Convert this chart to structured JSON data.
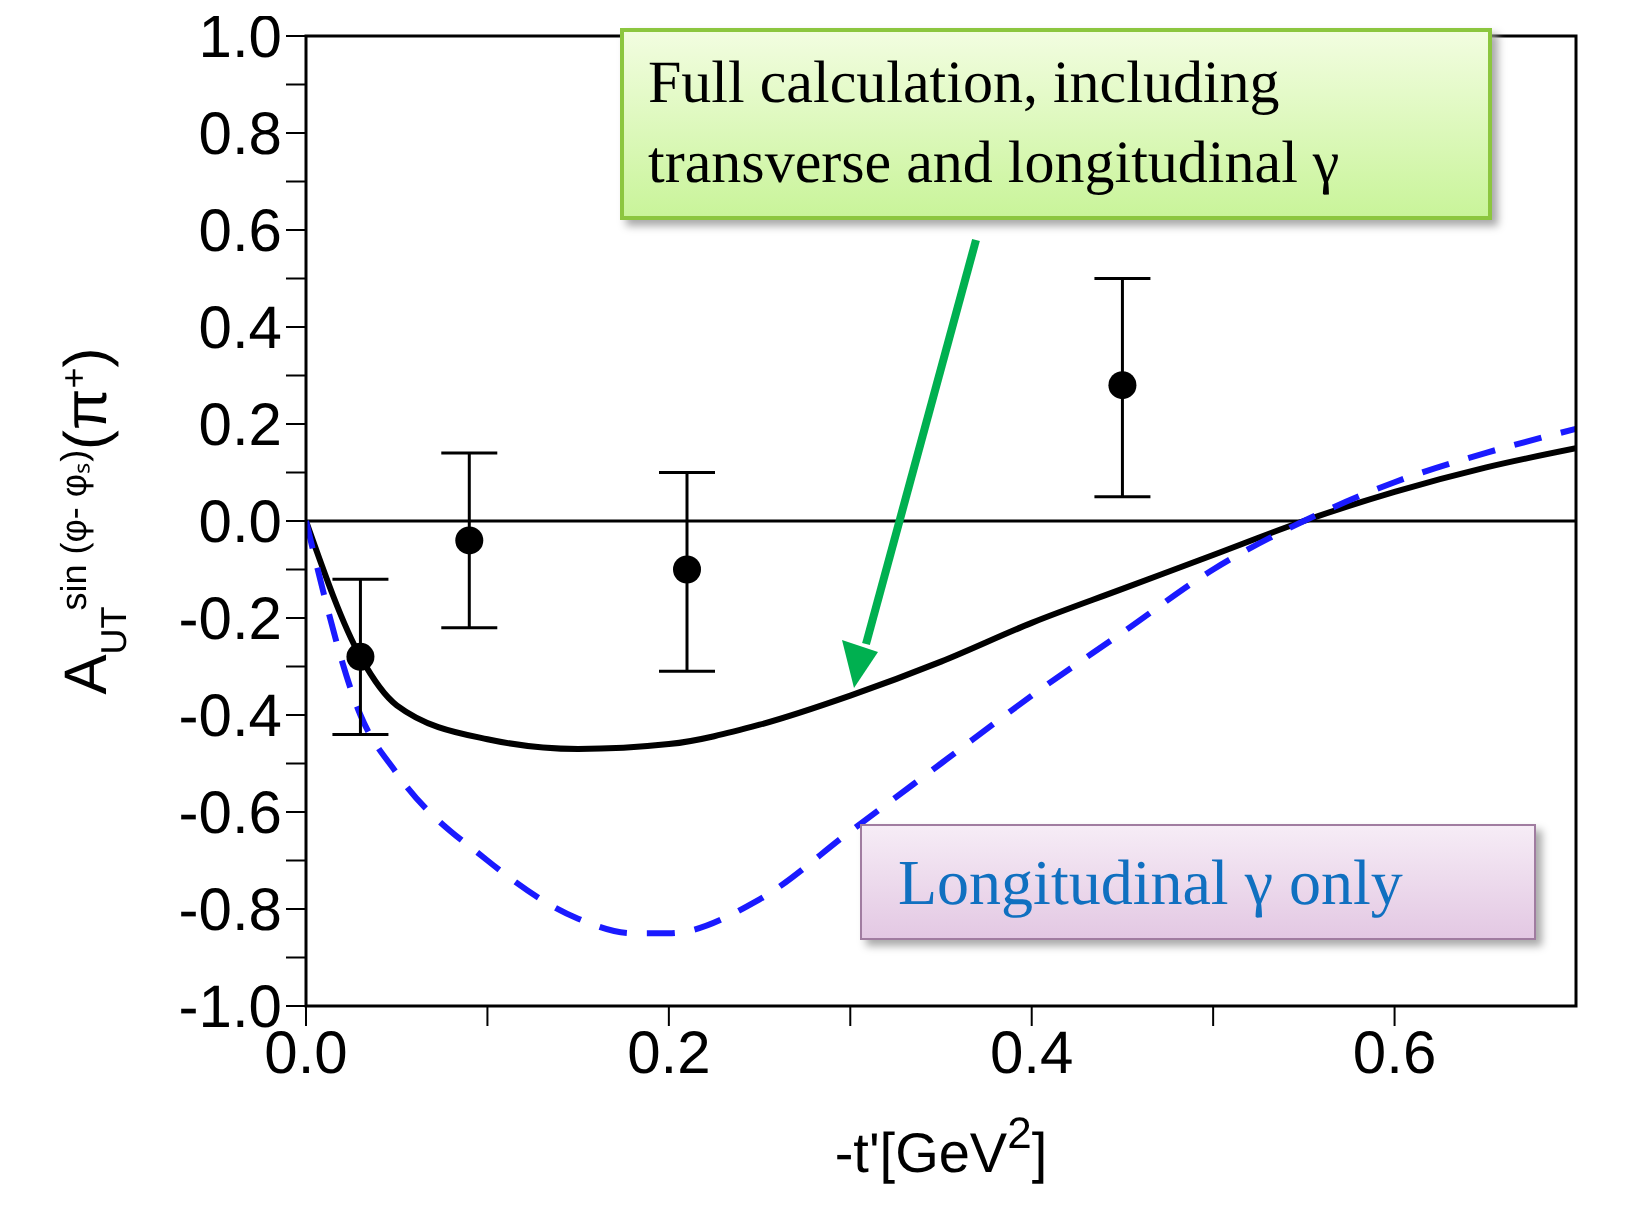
{
  "chart_data": {
    "type": "line",
    "xlabel": "-t'[GeV$^{2}$]",
    "ylabel": "A$_{UT}$$^{sin (φ- φₛ)}$(π$^{+}$)",
    "xlim": [
      0,
      0.7
    ],
    "ylim": [
      -1,
      1
    ],
    "xticks": [
      {
        "value": 0,
        "label": "0.0"
      },
      {
        "value": 0.1,
        "label": null
      },
      {
        "value": 0.2,
        "label": "0.2"
      },
      {
        "value": 0.3,
        "label": null
      },
      {
        "value": 0.4,
        "label": "0.4"
      },
      {
        "value": 0.5,
        "label": null
      },
      {
        "value": 0.6,
        "label": "0.6"
      }
    ],
    "yticks": [
      {
        "value": -1,
        "label": "-1.0"
      },
      {
        "value": -0.9,
        "label": null
      },
      {
        "value": -0.8,
        "label": "-0.8"
      },
      {
        "value": -0.7,
        "label": null
      },
      {
        "value": -0.6,
        "label": "-0.6"
      },
      {
        "value": -0.5,
        "label": null
      },
      {
        "value": -0.4,
        "label": "-0.4"
      },
      {
        "value": -0.3,
        "label": null
      },
      {
        "value": -0.2,
        "label": "-0.2"
      },
      {
        "value": -0.1,
        "label": null
      },
      {
        "value": 0,
        "label": "0.0"
      },
      {
        "value": 0.1,
        "label": null
      },
      {
        "value": 0.2,
        "label": "0.2"
      },
      {
        "value": 0.3,
        "label": null
      },
      {
        "value": 0.4,
        "label": "0.4"
      },
      {
        "value": 0.5,
        "label": null
      },
      {
        "value": 0.6,
        "label": "0.6"
      },
      {
        "value": 0.7,
        "label": null
      },
      {
        "value": 0.8,
        "label": "0.8"
      },
      {
        "value": 0.9,
        "label": null
      },
      {
        "value": 1,
        "label": "1.0"
      }
    ],
    "grid": false,
    "legend": false,
    "ref_lines": [
      {
        "axis": "y",
        "value": 0,
        "color": "#000000"
      }
    ],
    "series": [
      {
        "color": "#000000",
        "line_style": "solid",
        "marker": "none",
        "x": [
          0,
          0.03,
          0.05,
          0.1,
          0.15,
          0.2,
          0.25,
          0.3,
          0.35,
          0.4,
          0.45,
          0.5,
          0.55,
          0.6,
          0.65,
          0.7
        ],
        "values": [
          0,
          -0.28,
          -0.38,
          -0.45,
          -0.47,
          -0.46,
          -0.42,
          -0.36,
          -0.29,
          -0.21,
          -0.14,
          -0.07,
          0,
          0.06,
          0.11,
          0.15
        ]
      },
      {
        "color": "#1a1aff",
        "line_style": "dashed",
        "marker": "none",
        "x": [
          0,
          0.03,
          0.05,
          0.1,
          0.15,
          0.18,
          0.2,
          0.25,
          0.3,
          0.35,
          0.4,
          0.45,
          0.5,
          0.55,
          0.6,
          0.65,
          0.7
        ],
        "values": [
          0,
          -0.4,
          -0.52,
          -0.7,
          -0.82,
          -0.85,
          -0.85,
          -0.78,
          -0.64,
          -0.5,
          -0.36,
          -0.23,
          -0.1,
          0,
          0.08,
          0.14,
          0.19
        ]
      },
      {
        "type": "scatter",
        "color": "#000000",
        "marker": "circle",
        "x": [
          0.03,
          0.09,
          0.21,
          0.45
        ],
        "values": [
          -0.28,
          -0.04,
          -0.1,
          0.28
        ],
        "errors": [
          [
            -0.44,
            -0.12
          ],
          [
            -0.22,
            0.14
          ],
          [
            -0.31,
            0.1
          ],
          [
            0.05,
            0.5
          ]
        ]
      }
    ],
    "annotations": [
      "Full calculation, including transverse and longitudinal γ",
      "Longitudinal γ only"
    ]
  }
}
